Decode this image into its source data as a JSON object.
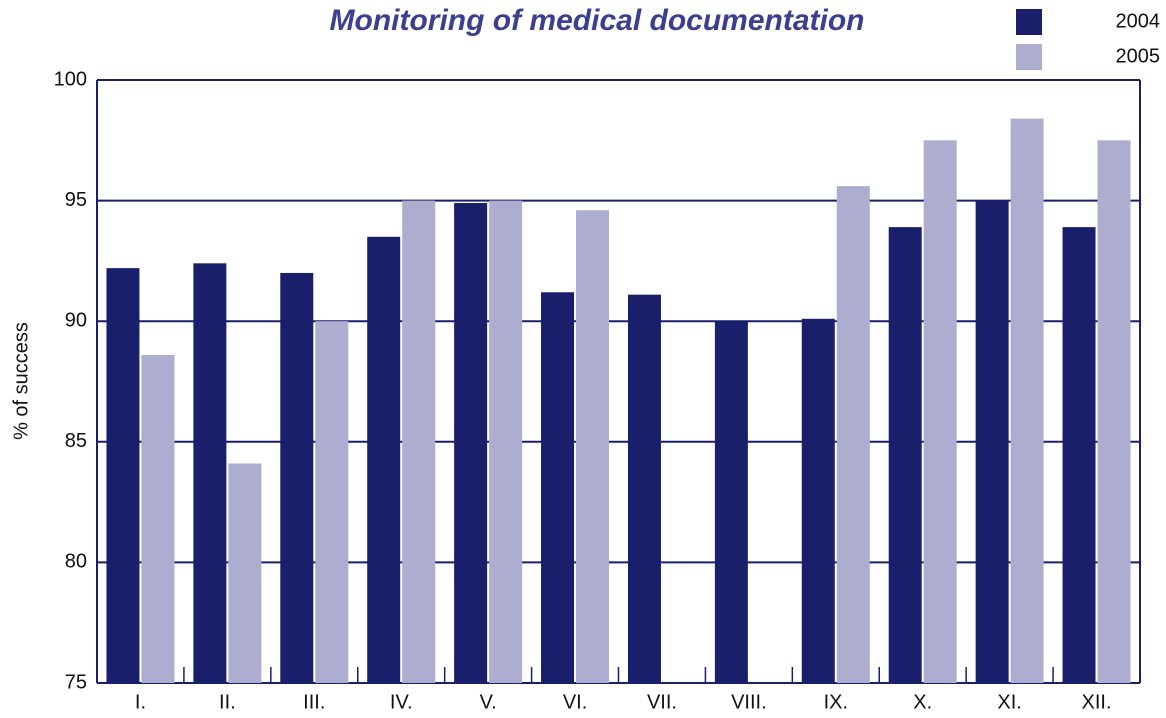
{
  "chart_data": {
    "type": "bar",
    "title": "Monitoring of medical documentation",
    "y_label": "% of success",
    "categories": [
      "I.",
      "II.",
      "III.",
      "IV.",
      "V.",
      "VI.",
      "VII.",
      "VIII.",
      "IX.",
      "X.",
      "XI.",
      "XII."
    ],
    "series": [
      {
        "name": "2004",
        "color": "#1a1f6b",
        "values": [
          92.2,
          92.4,
          92.0,
          93.5,
          94.9,
          91.2,
          91.1,
          90.0,
          90.1,
          93.9,
          95.0,
          93.9
        ]
      },
      {
        "name": "2005",
        "color": "#adadd0",
        "values": [
          88.6,
          84.1,
          90.0,
          95.0,
          95.0,
          94.6,
          null,
          null,
          95.6,
          97.5,
          98.4,
          97.5
        ]
      }
    ],
    "ylim": [
      75,
      100
    ],
    "yticks": [
      75,
      80,
      85,
      90,
      95,
      100
    ],
    "grid": true,
    "legend": "top-right"
  }
}
